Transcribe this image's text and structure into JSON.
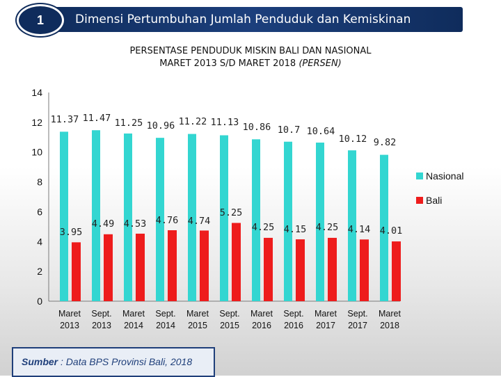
{
  "header": {
    "number": "1",
    "title": "Dimensi Pertumbuhan Jumlah Penduduk dan Kemiskinan"
  },
  "chart_title": {
    "line1": "PERSENTASE PENDUDUK MISKIN BALI DAN NASIONAL",
    "line2_prefix": "MARET 2013 S/D MARET 2018 ",
    "line2_suffix": "(PERSEN)"
  },
  "source": {
    "label": "Sumber",
    "text": " : Data BPS Provinsi Bali, 2018"
  },
  "colors": {
    "nasional": "#33d6d1",
    "bali": "#ee1c1c",
    "header": "#0f2c5c"
  },
  "chart_data": {
    "type": "bar",
    "categories": [
      [
        "Maret",
        "2013"
      ],
      [
        "Sept.",
        "2013"
      ],
      [
        "Maret",
        "2014"
      ],
      [
        "Sept.",
        "2014"
      ],
      [
        "Maret",
        "2015"
      ],
      [
        "Sept.",
        "2015"
      ],
      [
        "Maret",
        "2016"
      ],
      [
        "Sept.",
        "2016"
      ],
      [
        "Maret",
        "2017"
      ],
      [
        "Sept.",
        "2017"
      ],
      [
        "Maret",
        "2018"
      ]
    ],
    "series": [
      {
        "name": "Nasional",
        "values": [
          11.37,
          11.47,
          11.25,
          10.96,
          11.22,
          11.13,
          10.86,
          10.7,
          10.64,
          10.12,
          9.82
        ],
        "labels": [
          "11.37",
          "11.47",
          "11.25",
          "10.96",
          "11.22",
          "11.13",
          "10.86",
          "10.7",
          "10.64",
          "10.12",
          "9.82"
        ]
      },
      {
        "name": "Bali",
        "values": [
          3.95,
          4.49,
          4.53,
          4.76,
          4.74,
          5.25,
          4.25,
          4.15,
          4.25,
          4.14,
          4.01
        ],
        "labels": [
          "3.95",
          "4.49",
          "4.53",
          "4.76",
          "4.74",
          "5.25",
          "4.25",
          "4.15",
          "4.25",
          "4.14",
          "4.01"
        ]
      }
    ],
    "yticks": [
      "0",
      "2",
      "4",
      "6",
      "8",
      "10",
      "12",
      "14"
    ],
    "ylim": [
      0,
      14
    ],
    "legend_position": "right"
  }
}
